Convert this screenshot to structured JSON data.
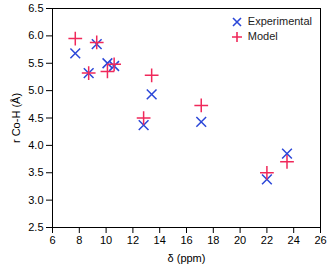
{
  "chart_data": {
    "type": "scatter",
    "x_label": "δ (ppm)",
    "y_label": "r Co-H (Å)",
    "x": [
      7.7,
      8.7,
      9.3,
      10.1,
      10.6,
      12.8,
      13.4,
      17.1,
      22.0,
      23.5
    ],
    "series": [
      {
        "name": "Experimental",
        "color": "#2b47d8",
        "marker": "x",
        "values": [
          5.68,
          5.32,
          5.85,
          5.5,
          5.45,
          4.37,
          4.93,
          4.43,
          3.38,
          3.85
        ]
      },
      {
        "name": "Model",
        "color": "#f0285a",
        "marker": "+",
        "values": [
          5.95,
          5.32,
          5.88,
          5.35,
          5.48,
          4.5,
          5.28,
          4.73,
          3.5,
          3.7
        ]
      }
    ],
    "xlim": [
      6,
      26
    ],
    "xticks": [
      6,
      8,
      10,
      12,
      14,
      16,
      18,
      20,
      22,
      24,
      26
    ],
    "ylim": [
      2.5,
      6.5
    ],
    "yticks": [
      2.5,
      {
        "value": 3,
        "label": "3.0"
      },
      3.5,
      {
        "value": 4,
        "label": "4.0"
      },
      4.5,
      {
        "value": 5,
        "label": "5.0"
      },
      5.5,
      {
        "value": 6,
        "label": "6.0"
      },
      6.5
    ],
    "legend": "top-right",
    "grid": false
  }
}
